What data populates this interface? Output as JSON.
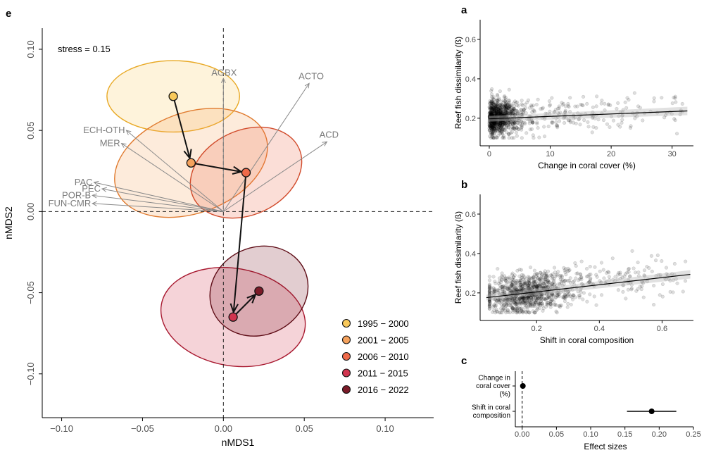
{
  "chart_data": [
    {
      "panel": "e",
      "type": "scatter",
      "subtype": "nMDS ordination",
      "xlabel": "nMDS1",
      "ylabel": "nMDS2",
      "xlim": [
        -0.112,
        0.13
      ],
      "ylim": [
        -0.127,
        0.113
      ],
      "xticks": [
        -0.1,
        -0.05,
        0,
        0.05,
        0.1
      ],
      "xtick_labels": [
        "−0.10",
        "−0.05",
        "0.00",
        "0.05",
        "0.10"
      ],
      "yticks": [
        -0.1,
        -0.05,
        0,
        0.05,
        0.1
      ],
      "ytick_labels": [
        "−0.10",
        "−0.05",
        "0.00",
        "0.05",
        "0.10"
      ],
      "annotation": "stress = 0.15",
      "periods": [
        {
          "label": "1995 − 2000",
          "color": "#f9c95a",
          "stroke": "#e8a823",
          "x": -0.031,
          "y": 0.071,
          "rx": 0.041,
          "ry": 0.022,
          "angle": 0
        },
        {
          "label": "2001 − 2005",
          "color": "#f5a25d",
          "stroke": "#e07a2e",
          "x": -0.02,
          "y": 0.03,
          "rx": 0.049,
          "ry": 0.031,
          "angle": -20
        },
        {
          "label": "2006 − 2010",
          "color": "#ef6a4a",
          "stroke": "#d14b2b",
          "x": 0.014,
          "y": 0.024,
          "rx": 0.036,
          "ry": 0.026,
          "angle": -25
        },
        {
          "label": "2011 − 2015",
          "color": "#d1354f",
          "stroke": "#a8182f",
          "x": 0.006,
          "y": -0.065,
          "rx": 0.045,
          "ry": 0.03,
          "angle": 10
        },
        {
          "label": "2016 − 2022",
          "color": "#7b1b28",
          "stroke": "#5e0c16",
          "x": 0.022,
          "y": -0.049,
          "rx": 0.031,
          "ry": 0.027,
          "angle": -25
        }
      ],
      "vectors": [
        {
          "label": "AGBX",
          "x": 0.0,
          "y": 0.082
        },
        {
          "label": "ACTO",
          "x": 0.053,
          "y": 0.079
        },
        {
          "label": "ACD",
          "x": 0.064,
          "y": 0.043
        },
        {
          "label": "ECH-OTH",
          "x": -0.06,
          "y": 0.05
        },
        {
          "label": "MER",
          "x": -0.063,
          "y": 0.042
        },
        {
          "label": "PAC",
          "x": -0.08,
          "y": 0.018
        },
        {
          "label": "PEC",
          "x": -0.075,
          "y": 0.014
        },
        {
          "label": "POR-B",
          "x": -0.081,
          "y": 0.01
        },
        {
          "label": "FUN-CMR",
          "x": -0.081,
          "y": 0.005
        }
      ]
    },
    {
      "panel": "a",
      "type": "scatter",
      "xlabel": "Change in coral cover (%)",
      "ylabel": "Reef fish dissimilarity (ß)",
      "xlim": [
        -1.5,
        33.5
      ],
      "ylim": [
        0.06,
        0.7
      ],
      "xticks": [
        0,
        10,
        20,
        30
      ],
      "xtick_labels": [
        "0",
        "10",
        "20",
        "30"
      ],
      "yticks": [
        0.2,
        0.4,
        0.6
      ],
      "ytick_labels": [
        "0.2",
        "0.4",
        "0.6"
      ],
      "fit_line": {
        "x": [
          0,
          32.5
        ],
        "y": [
          0.197,
          0.237
        ]
      }
    },
    {
      "panel": "b",
      "type": "scatter",
      "xlabel": "Shift in coral composition",
      "ylabel": "Reef fish dissimilarity (ß)",
      "xlim": [
        0.02,
        0.7
      ],
      "ylim": [
        0.06,
        0.7
      ],
      "xticks": [
        0.2,
        0.4,
        0.6
      ],
      "xtick_labels": [
        "0.2",
        "0.4",
        "0.6"
      ],
      "yticks": [
        0.2,
        0.4,
        0.6
      ],
      "ytick_labels": [
        "0.2",
        "0.4",
        "0.6"
      ],
      "fit_line": {
        "x": [
          0.04,
          0.69
        ],
        "y": [
          0.176,
          0.294
        ]
      }
    },
    {
      "panel": "c",
      "type": "scatter",
      "subtype": "effect sizes with confidence intervals",
      "xlabel": "Effect sizes",
      "xlim": [
        -0.01,
        0.25
      ],
      "xticks": [
        0.0,
        0.05,
        0.1,
        0.15,
        0.2,
        0.25
      ],
      "xtick_labels": [
        "0.00",
        "0.05",
        "0.10",
        "0.15",
        "0.20",
        "0.25"
      ],
      "categories": [
        {
          "lines": [
            "Change in",
            "coral cover",
            "(%)"
          ],
          "estimate": 0.001,
          "ci": [
            0.0,
            0.002
          ]
        },
        {
          "lines": [
            "Shift in coral",
            "composition"
          ],
          "estimate": 0.189,
          "ci": [
            0.153,
            0.225
          ]
        }
      ]
    }
  ]
}
